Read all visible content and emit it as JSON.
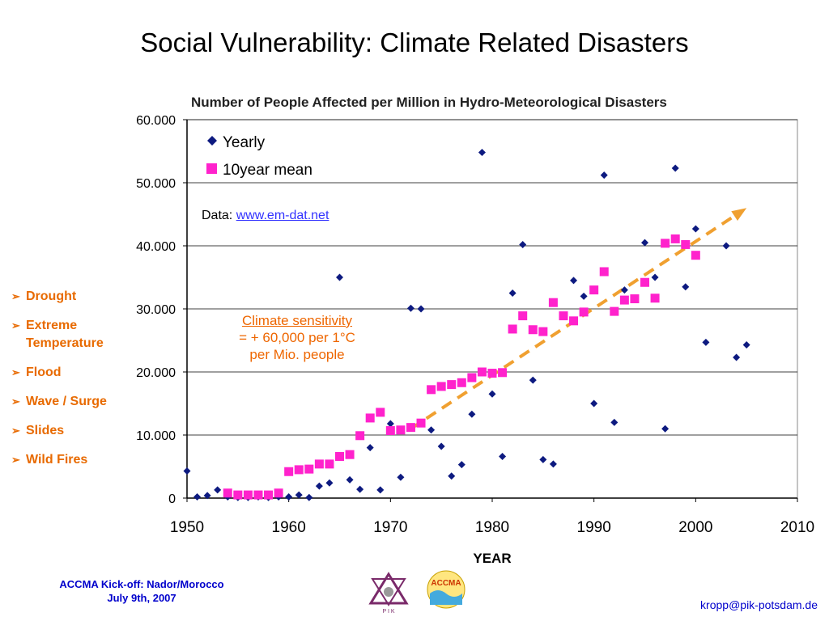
{
  "slide": {
    "title": "Social Vulnerability: Climate Related Disasters",
    "data_note_prefix": "Data: ",
    "data_note_link": "www.em-dat.net",
    "annotation": [
      "Climate sensitivity",
      "= + 60,000 per 1°C",
      "per Mio. people"
    ],
    "disaster_types": [
      "Drought",
      "Extreme Temperature",
      "Flood",
      "Wave / Surge",
      "Slides",
      "Wild Fires"
    ],
    "footer_left": [
      "ACCMA Kick-off: Nador/Morocco",
      "July 9th, 2007"
    ],
    "footer_right": "kropp@pik-potsdam.de",
    "logo_pik_text": "P I K",
    "logo_accma_text": "ACCMA",
    "colors": {
      "title": "#000000",
      "list": "#e86a00",
      "annotation": "#ee6600",
      "footer": "#0000cc",
      "link": "#3333ff"
    }
  },
  "chart_data": {
    "type": "scatter",
    "title": "Number of People Affected per Million in Hydro-Meteorological Disasters",
    "xlabel": "YEAR",
    "ylabel": "",
    "xlim": [
      1950,
      2010
    ],
    "ylim": [
      0,
      60000
    ],
    "x_ticks": [
      1950,
      1960,
      1970,
      1980,
      1990,
      2000,
      2010
    ],
    "y_ticks": [
      0,
      10000,
      20000,
      30000,
      40000,
      50000,
      60000
    ],
    "y_tick_labels": [
      "0",
      "10.000",
      "20.000",
      "30.000",
      "40.000",
      "50.000",
      "60.000"
    ],
    "grid": "horizontal",
    "legend": "top-left",
    "series": [
      {
        "name": "Yearly",
        "marker": "diamond",
        "color": "#0d1a80",
        "points": [
          [
            1950,
            4300
          ],
          [
            1951,
            200
          ],
          [
            1952,
            400
          ],
          [
            1953,
            1300
          ],
          [
            1954,
            200
          ],
          [
            1955,
            100
          ],
          [
            1956,
            100
          ],
          [
            1957,
            200
          ],
          [
            1958,
            100
          ],
          [
            1959,
            200
          ],
          [
            1960,
            200
          ],
          [
            1961,
            500
          ],
          [
            1962,
            100
          ],
          [
            1963,
            1900
          ],
          [
            1964,
            2400
          ],
          [
            1965,
            35000
          ],
          [
            1966,
            2900
          ],
          [
            1967,
            1400
          ],
          [
            1968,
            8000
          ],
          [
            1969,
            1300
          ],
          [
            1970,
            11800
          ],
          [
            1971,
            3300
          ],
          [
            1972,
            30100
          ],
          [
            1973,
            30000
          ],
          [
            1974,
            10800
          ],
          [
            1975,
            8200
          ],
          [
            1976,
            3500
          ],
          [
            1977,
            5300
          ],
          [
            1978,
            13300
          ],
          [
            1979,
            54800
          ],
          [
            1980,
            16500
          ],
          [
            1981,
            6600
          ],
          [
            1982,
            32500
          ],
          [
            1983,
            40200
          ],
          [
            1984,
            18700
          ],
          [
            1985,
            6100
          ],
          [
            1986,
            5400
          ],
          [
            1988,
            34500
          ],
          [
            1989,
            32000
          ],
          [
            1990,
            15000
          ],
          [
            1991,
            51200
          ],
          [
            1992,
            12000
          ],
          [
            1993,
            33000
          ],
          [
            1995,
            40500
          ],
          [
            1996,
            35000
          ],
          [
            1997,
            11000
          ],
          [
            1998,
            52300
          ],
          [
            1999,
            33500
          ],
          [
            2000,
            42700
          ],
          [
            2001,
            24700
          ],
          [
            2003,
            40000
          ],
          [
            2004,
            22300
          ],
          [
            2005,
            24300
          ]
        ]
      },
      {
        "name": "10year mean",
        "marker": "square",
        "color": "#ff22cc",
        "points": [
          [
            1954,
            800
          ],
          [
            1955,
            500
          ],
          [
            1956,
            500
          ],
          [
            1957,
            500
          ],
          [
            1958,
            500
          ],
          [
            1959,
            800
          ],
          [
            1960,
            4200
          ],
          [
            1961,
            4500
          ],
          [
            1962,
            4600
          ],
          [
            1963,
            5400
          ],
          [
            1964,
            5400
          ],
          [
            1965,
            6600
          ],
          [
            1966,
            6900
          ],
          [
            1967,
            9900
          ],
          [
            1968,
            12700
          ],
          [
            1969,
            13600
          ],
          [
            1970,
            10700
          ],
          [
            1971,
            10800
          ],
          [
            1972,
            11200
          ],
          [
            1973,
            11900
          ],
          [
            1974,
            17200
          ],
          [
            1975,
            17700
          ],
          [
            1976,
            18000
          ],
          [
            1977,
            18300
          ],
          [
            1978,
            19100
          ],
          [
            1979,
            20000
          ],
          [
            1980,
            19800
          ],
          [
            1981,
            19900
          ],
          [
            1982,
            26800
          ],
          [
            1983,
            28900
          ],
          [
            1984,
            26700
          ],
          [
            1985,
            26400
          ],
          [
            1986,
            31000
          ],
          [
            1987,
            28900
          ],
          [
            1988,
            28100
          ],
          [
            1989,
            29500
          ],
          [
            1990,
            33000
          ],
          [
            1991,
            35900
          ],
          [
            1992,
            29600
          ],
          [
            1993,
            31400
          ],
          [
            1994,
            31600
          ],
          [
            1995,
            34200
          ],
          [
            1996,
            31700
          ],
          [
            1997,
            40400
          ],
          [
            1998,
            41100
          ],
          [
            1999,
            40200
          ],
          [
            2000,
            38500
          ]
        ]
      }
    ],
    "trend_arrow": {
      "from": [
        1972,
        11000
      ],
      "to": [
        2005,
        46000
      ],
      "color": "#f0a030",
      "style": "dashed"
    }
  }
}
